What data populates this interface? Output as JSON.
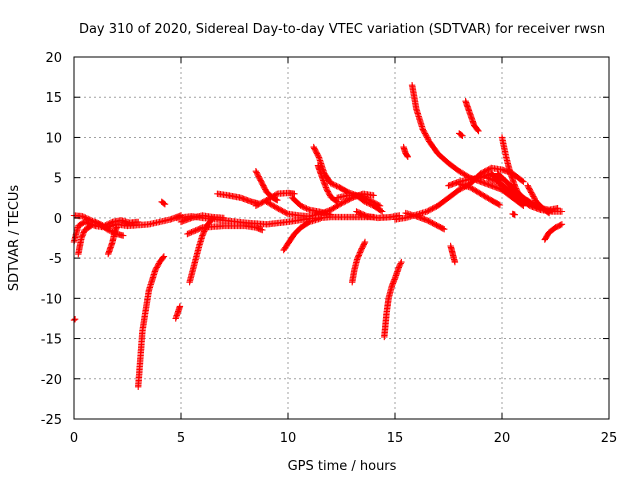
{
  "chart_data": {
    "type": "scatter",
    "title": "Day 310 of 2020, Sidereal Day-to-day VTEC variation (SDTVAR) for receiver rwsn",
    "xlabel": "GPS time / hours",
    "ylabel": "SDTVAR / TECUs",
    "xlim": [
      0,
      25
    ],
    "ylim": [
      -25,
      20
    ],
    "xticks": [
      0,
      5,
      10,
      15,
      20,
      25
    ],
    "yticks": [
      -25,
      -20,
      -15,
      -10,
      -5,
      0,
      5,
      10,
      15,
      20
    ],
    "grid": true,
    "marker": "+",
    "series_color": "#ff0000",
    "tracks": [
      {
        "points": [
          [
            0.0,
            -3.0
          ],
          [
            0.2,
            -1.0
          ],
          [
            0.5,
            -0.5
          ],
          [
            1.0,
            -1.0
          ],
          [
            1.5,
            -1.2
          ],
          [
            2.0,
            -0.8
          ],
          [
            2.5,
            -1.0
          ],
          [
            3.0,
            -0.9
          ],
          [
            3.5,
            -0.8
          ],
          [
            4.0,
            -0.5
          ],
          [
            4.5,
            -0.2
          ],
          [
            5.0,
            0.3
          ]
        ]
      },
      {
        "points": [
          [
            0.0,
            -12.7
          ],
          [
            0.05,
            -12.6
          ]
        ]
      },
      {
        "points": [
          [
            0.2,
            -4.5
          ],
          [
            0.35,
            -2.5
          ],
          [
            0.5,
            -1.5
          ],
          [
            0.8,
            -1.0
          ]
        ]
      },
      {
        "points": [
          [
            0.0,
            0.3
          ],
          [
            0.4,
            0.2
          ],
          [
            0.8,
            -0.3
          ],
          [
            1.2,
            -0.8
          ],
          [
            1.6,
            -1.5
          ],
          [
            2.0,
            -2.0
          ],
          [
            2.3,
            -2.2
          ]
        ]
      },
      {
        "points": [
          [
            1.0,
            -0.5
          ],
          [
            1.4,
            -1.0
          ],
          [
            1.8,
            -0.5
          ],
          [
            2.2,
            -0.3
          ],
          [
            2.6,
            -0.6
          ],
          [
            3.0,
            -0.5
          ]
        ]
      },
      {
        "points": [
          [
            1.6,
            -4.5
          ],
          [
            1.8,
            -3.0
          ],
          [
            1.9,
            -1.8
          ],
          [
            2.0,
            -1.2
          ]
        ]
      },
      {
        "points": [
          [
            3.0,
            -21.0
          ],
          [
            3.2,
            -14.0
          ],
          [
            3.5,
            -9.0
          ],
          [
            3.8,
            -6.5
          ],
          [
            4.0,
            -5.5
          ],
          [
            4.2,
            -4.8
          ]
        ]
      },
      {
        "points": [
          [
            4.1,
            2.0
          ],
          [
            4.25,
            1.7
          ]
        ]
      },
      {
        "points": [
          [
            4.75,
            -12.5
          ],
          [
            4.85,
            -11.8
          ],
          [
            4.95,
            -11.0
          ]
        ]
      },
      {
        "points": [
          [
            4.8,
            0.0
          ],
          [
            5.5,
            0.2
          ],
          [
            6.0,
            0.0
          ],
          [
            7.0,
            -0.3
          ],
          [
            8.0,
            -0.6
          ],
          [
            9.0,
            -0.8
          ],
          [
            10.0,
            -0.5
          ],
          [
            11.0,
            -0.1
          ],
          [
            12.0,
            0.1
          ],
          [
            13.0,
            0.1
          ],
          [
            14.0,
            0.1
          ]
        ]
      },
      {
        "points": [
          [
            5.0,
            -0.5
          ],
          [
            5.5,
            0.0
          ],
          [
            6.0,
            0.3
          ],
          [
            6.5,
            0.1
          ],
          [
            7.0,
            0.0
          ]
        ]
      },
      {
        "points": [
          [
            5.3,
            -2.0
          ],
          [
            6.0,
            -1.2
          ],
          [
            7.0,
            -1.0
          ],
          [
            8.0,
            -1.0
          ],
          [
            8.5,
            -1.2
          ],
          [
            8.8,
            -1.5
          ]
        ]
      },
      {
        "points": [
          [
            5.4,
            -8.0
          ],
          [
            5.55,
            -6.5
          ],
          [
            5.7,
            -5.0
          ],
          [
            5.85,
            -3.5
          ],
          [
            6.0,
            -2.2
          ],
          [
            6.2,
            -1.0
          ],
          [
            6.5,
            0.0
          ]
        ]
      },
      {
        "points": [
          [
            6.7,
            3.0
          ],
          [
            7.2,
            2.8
          ],
          [
            7.8,
            2.5
          ],
          [
            8.3,
            2.0
          ],
          [
            8.6,
            1.8
          ]
        ]
      },
      {
        "points": [
          [
            8.5,
            5.8
          ],
          [
            8.75,
            4.5
          ],
          [
            9.0,
            3.2
          ],
          [
            9.3,
            2.5
          ],
          [
            9.5,
            2.2
          ]
        ]
      },
      {
        "points": [
          [
            8.5,
            1.5
          ],
          [
            9.0,
            2.2
          ],
          [
            9.5,
            3.0
          ],
          [
            10.0,
            3.1
          ],
          [
            10.3,
            3.0
          ]
        ]
      },
      {
        "points": [
          [
            9.0,
            2.0
          ],
          [
            9.5,
            1.2
          ],
          [
            10.0,
            0.5
          ],
          [
            10.5,
            0.3
          ],
          [
            11.0,
            0.2
          ],
          [
            11.5,
            0.5
          ],
          [
            12.0,
            1.0
          ],
          [
            12.5,
            1.8
          ],
          [
            13.0,
            2.5
          ],
          [
            13.5,
            3.0
          ],
          [
            14.0,
            2.8
          ]
        ]
      },
      {
        "points": [
          [
            10.2,
            2.5
          ],
          [
            10.6,
            1.5
          ],
          [
            11.0,
            1.0
          ],
          [
            11.6,
            0.7
          ],
          [
            12.0,
            0.4
          ]
        ]
      },
      {
        "points": [
          [
            9.8,
            -4.0
          ],
          [
            10.0,
            -3.2
          ],
          [
            10.3,
            -2.0
          ],
          [
            10.6,
            -1.2
          ],
          [
            11.0,
            -0.5
          ],
          [
            11.5,
            -0.1
          ]
        ]
      },
      {
        "points": [
          [
            11.2,
            8.8
          ],
          [
            11.45,
            7.5
          ],
          [
            11.7,
            5.5
          ],
          [
            12.0,
            4.3
          ],
          [
            12.4,
            3.8
          ],
          [
            12.8,
            3.2
          ],
          [
            13.2,
            2.8
          ],
          [
            13.6,
            2.0
          ],
          [
            14.0,
            1.5
          ],
          [
            14.4,
            0.8
          ]
        ]
      },
      {
        "points": [
          [
            11.4,
            6.5
          ],
          [
            11.6,
            5.0
          ],
          [
            11.8,
            3.6
          ],
          [
            12.0,
            2.6
          ],
          [
            12.3,
            2.0
          ]
        ]
      },
      {
        "points": [
          [
            12.3,
            2.5
          ],
          [
            12.8,
            2.8
          ],
          [
            13.3,
            2.8
          ],
          [
            13.8,
            2.2
          ],
          [
            14.3,
            1.5
          ]
        ]
      },
      {
        "points": [
          [
            13.0,
            -8.0
          ],
          [
            13.1,
            -6.5
          ],
          [
            13.25,
            -5.0
          ],
          [
            13.45,
            -3.8
          ],
          [
            13.6,
            -3.0
          ]
        ]
      },
      {
        "points": [
          [
            13.2,
            0.8
          ],
          [
            13.7,
            0.2
          ],
          [
            14.2,
            0.0
          ],
          [
            14.8,
            0.1
          ],
          [
            15.2,
            0.3
          ]
        ]
      },
      {
        "points": [
          [
            14.5,
            -14.8
          ],
          [
            14.6,
            -12.0
          ],
          [
            14.7,
            -10.0
          ],
          [
            14.85,
            -8.5
          ],
          [
            15.0,
            -7.5
          ],
          [
            15.2,
            -6.0
          ],
          [
            15.3,
            -5.5
          ]
        ]
      },
      {
        "points": [
          [
            15.4,
            8.8
          ],
          [
            15.5,
            8.0
          ],
          [
            15.6,
            7.6
          ]
        ]
      },
      {
        "points": [
          [
            15.8,
            16.5
          ],
          [
            16.0,
            13.5
          ],
          [
            16.3,
            11.0
          ],
          [
            16.6,
            9.5
          ],
          [
            17.0,
            8.0
          ],
          [
            17.5,
            6.8
          ],
          [
            18.0,
            5.8
          ],
          [
            18.5,
            5.0
          ],
          [
            19.0,
            4.5
          ],
          [
            19.5,
            4.0
          ],
          [
            20.0,
            3.5
          ],
          [
            20.5,
            2.5
          ],
          [
            21.0,
            1.5
          ]
        ]
      },
      {
        "points": [
          [
            15.0,
            -0.2
          ],
          [
            15.5,
            0.0
          ],
          [
            16.0,
            0.4
          ],
          [
            16.5,
            0.8
          ],
          [
            17.0,
            1.5
          ],
          [
            17.5,
            2.5
          ],
          [
            18.0,
            3.5
          ],
          [
            18.5,
            4.2
          ],
          [
            19.0,
            5.5
          ],
          [
            19.5,
            6.2
          ],
          [
            20.0,
            6.0
          ],
          [
            20.5,
            5.5
          ],
          [
            21.0,
            4.5
          ]
        ]
      },
      {
        "points": [
          [
            15.5,
            0.6
          ],
          [
            16.0,
            0.2
          ],
          [
            16.5,
            -0.3
          ],
          [
            17.0,
            -1.0
          ],
          [
            17.3,
            -1.4
          ]
        ]
      },
      {
        "points": [
          [
            17.6,
            -3.5
          ],
          [
            17.7,
            -4.5
          ],
          [
            17.8,
            -5.5
          ]
        ]
      },
      {
        "points": [
          [
            18.0,
            10.5
          ],
          [
            18.15,
            10.2
          ]
        ]
      },
      {
        "points": [
          [
            18.3,
            14.5
          ],
          [
            18.5,
            13.0
          ],
          [
            18.7,
            11.5
          ],
          [
            18.9,
            10.8
          ]
        ]
      },
      {
        "points": [
          [
            17.5,
            4.0
          ],
          [
            18.0,
            4.5
          ],
          [
            18.5,
            4.8
          ],
          [
            19.0,
            5.0
          ],
          [
            19.5,
            5.5
          ],
          [
            19.8,
            4.8
          ],
          [
            20.0,
            4.0
          ],
          [
            20.2,
            3.2
          ]
        ]
      },
      {
        "points": [
          [
            18.0,
            4.2
          ],
          [
            18.5,
            3.8
          ],
          [
            19.0,
            3.0
          ],
          [
            19.5,
            2.2
          ],
          [
            19.9,
            1.6
          ]
        ]
      },
      {
        "points": [
          [
            19.3,
            5.0
          ],
          [
            19.8,
            4.5
          ],
          [
            20.3,
            3.5
          ],
          [
            20.8,
            2.5
          ],
          [
            21.3,
            1.5
          ],
          [
            21.8,
            1.0
          ],
          [
            22.3,
            0.8
          ],
          [
            22.8,
            0.8
          ]
        ]
      },
      {
        "points": [
          [
            19.8,
            5.5
          ],
          [
            20.2,
            4.5
          ],
          [
            20.6,
            3.5
          ],
          [
            21.0,
            2.5
          ],
          [
            21.4,
            1.8
          ],
          [
            21.8,
            1.2
          ],
          [
            22.2,
            1.0
          ],
          [
            22.6,
            1.2
          ]
        ]
      },
      {
        "points": [
          [
            20.0,
            10.0
          ],
          [
            20.2,
            7.5
          ],
          [
            20.4,
            5.5
          ],
          [
            20.6,
            4.0
          ],
          [
            20.8,
            2.8
          ],
          [
            21.0,
            2.0
          ]
        ]
      },
      {
        "points": [
          [
            20.5,
            0.5
          ],
          [
            20.6,
            0.4
          ]
        ]
      },
      {
        "points": [
          [
            21.2,
            4.0
          ],
          [
            21.4,
            3.0
          ],
          [
            21.6,
            2.0
          ],
          [
            21.9,
            1.2
          ],
          [
            22.2,
            0.6
          ]
        ]
      },
      {
        "points": [
          [
            22.0,
            -2.7
          ],
          [
            22.2,
            -1.8
          ],
          [
            22.5,
            -1.2
          ],
          [
            22.8,
            -0.8
          ]
        ]
      }
    ]
  }
}
